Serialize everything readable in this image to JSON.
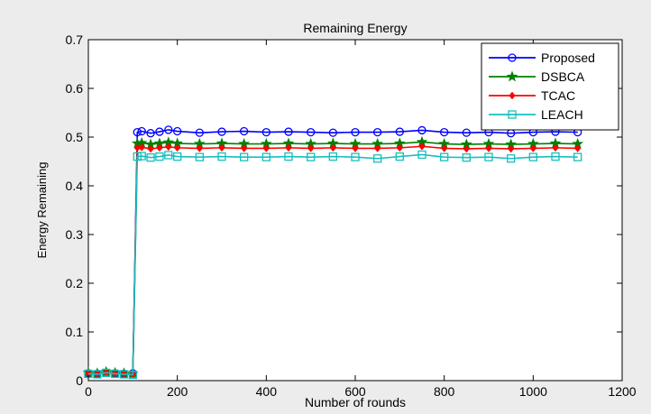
{
  "chart_data": {
    "type": "line",
    "title": "Remaining Energy",
    "xlabel": "Number of rounds",
    "ylabel": "Energy Remaining",
    "xlim": [
      0,
      1200
    ],
    "ylim": [
      0,
      0.7
    ],
    "xticks": [
      0,
      200,
      400,
      600,
      800,
      1000,
      1200
    ],
    "xtick_labels": [
      "0",
      "200",
      "400",
      "600",
      "800",
      "1000",
      "1200"
    ],
    "yticks": [
      0,
      0.1,
      0.2,
      0.3,
      0.4,
      0.5,
      0.6,
      0.7
    ],
    "ytick_labels": [
      "0",
      "0.1",
      "0.2",
      "0.3",
      "0.4",
      "0.5",
      "0.6",
      "0.7"
    ],
    "grid": false,
    "legend_position": "top-right",
    "background_color": "#ffffff",
    "series": [
      {
        "name": "Proposed",
        "color": "#0000ff",
        "marker": "circle",
        "x": [
          0,
          20,
          40,
          60,
          80,
          100,
          110,
          120,
          140,
          160,
          180,
          200,
          250,
          300,
          350,
          400,
          450,
          500,
          550,
          600,
          650,
          700,
          750,
          800,
          850,
          900,
          950,
          1000,
          1050,
          1100
        ],
        "y": [
          0.015,
          0.014,
          0.016,
          0.015,
          0.014,
          0.015,
          0.51,
          0.512,
          0.508,
          0.511,
          0.515,
          0.512,
          0.509,
          0.511,
          0.512,
          0.51,
          0.511,
          0.51,
          0.509,
          0.51,
          0.51,
          0.511,
          0.514,
          0.51,
          0.509,
          0.51,
          0.508,
          0.51,
          0.511,
          0.51
        ]
      },
      {
        "name": "DSBCA",
        "color": "#008000",
        "marker": "star",
        "x": [
          0,
          20,
          40,
          60,
          80,
          100,
          110,
          120,
          140,
          160,
          180,
          200,
          250,
          300,
          350,
          400,
          450,
          500,
          550,
          600,
          650,
          700,
          750,
          800,
          850,
          900,
          950,
          1000,
          1050,
          1100
        ],
        "y": [
          0.016,
          0.015,
          0.018,
          0.016,
          0.015,
          0.014,
          0.487,
          0.488,
          0.485,
          0.487,
          0.489,
          0.487,
          0.486,
          0.487,
          0.486,
          0.486,
          0.487,
          0.486,
          0.487,
          0.486,
          0.486,
          0.487,
          0.49,
          0.486,
          0.485,
          0.486,
          0.485,
          0.486,
          0.487,
          0.486
        ]
      },
      {
        "name": "TCAC",
        "color": "#ff0000",
        "marker": "diamond",
        "x": [
          0,
          20,
          40,
          60,
          80,
          100,
          110,
          120,
          140,
          160,
          180,
          200,
          250,
          300,
          350,
          400,
          450,
          500,
          550,
          600,
          650,
          700,
          750,
          800,
          850,
          900,
          950,
          1000,
          1050,
          1100
        ],
        "y": [
          0.015,
          0.014,
          0.017,
          0.015,
          0.014,
          0.013,
          0.478,
          0.479,
          0.476,
          0.478,
          0.48,
          0.478,
          0.477,
          0.478,
          0.477,
          0.477,
          0.478,
          0.477,
          0.478,
          0.477,
          0.477,
          0.478,
          0.481,
          0.477,
          0.476,
          0.477,
          0.476,
          0.477,
          0.478,
          0.477
        ]
      },
      {
        "name": "LEACH",
        "color": "#17bfbf",
        "marker": "square",
        "x": [
          0,
          20,
          40,
          60,
          80,
          100,
          110,
          120,
          140,
          160,
          180,
          200,
          250,
          300,
          350,
          400,
          450,
          500,
          550,
          600,
          650,
          700,
          750,
          800,
          850,
          900,
          950,
          1000,
          1050,
          1100
        ],
        "y": [
          0.014,
          0.013,
          0.016,
          0.014,
          0.013,
          0.012,
          0.46,
          0.461,
          0.458,
          0.46,
          0.463,
          0.46,
          0.459,
          0.46,
          0.459,
          0.459,
          0.46,
          0.459,
          0.46,
          0.459,
          0.456,
          0.46,
          0.464,
          0.459,
          0.458,
          0.459,
          0.456,
          0.459,
          0.46,
          0.459
        ]
      }
    ]
  }
}
